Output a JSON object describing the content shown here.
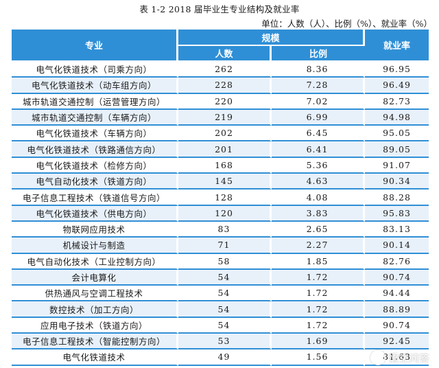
{
  "caption": "表 1-2   2018 届毕业生专业结构及就业率",
  "unit_note": "单位：人数（人）、比例（%）、就业率（%）",
  "headers": {
    "major": "专业",
    "scale": "规模",
    "count": "人数",
    "ratio": "比例",
    "rate": "就业率"
  },
  "rows": [
    {
      "major": "电气化铁道技术（司乘方向）",
      "count": "262",
      "ratio": "8.36",
      "rate": "96.95"
    },
    {
      "major": "电气化铁道技术（动车组方向）",
      "count": "228",
      "ratio": "7.28",
      "rate": "96.49"
    },
    {
      "major": "城市轨道交通控制（运营管理方向）",
      "count": "220",
      "ratio": "7.02",
      "rate": "82.73"
    },
    {
      "major": "城市轨道交通控制（车辆方向）",
      "count": "219",
      "ratio": "6.99",
      "rate": "94.98"
    },
    {
      "major": "电气化铁道技术（车辆方向）",
      "count": "202",
      "ratio": "6.45",
      "rate": "95.05"
    },
    {
      "major": "电气化铁道技术（铁路通信方向）",
      "count": "201",
      "ratio": "6.41",
      "rate": "89.05"
    },
    {
      "major": "电气化铁道技术（检修方向）",
      "count": "168",
      "ratio": "5.36",
      "rate": "91.07"
    },
    {
      "major": "电气自动化技术（铁道方向）",
      "count": "145",
      "ratio": "4.63",
      "rate": "90.34"
    },
    {
      "major": "电子信息工程技术（铁道信号方向）",
      "count": "128",
      "ratio": "4.08",
      "rate": "88.28"
    },
    {
      "major": "电气化铁道技术（供电方向）",
      "count": "120",
      "ratio": "3.83",
      "rate": "95.83"
    },
    {
      "major": "物联网应用技术",
      "count": "83",
      "ratio": "2.65",
      "rate": "83.13"
    },
    {
      "major": "机械设计与制造",
      "count": "71",
      "ratio": "2.27",
      "rate": "90.14"
    },
    {
      "major": "电气自动化技术（工业控制方向）",
      "count": "58",
      "ratio": "1.85",
      "rate": "82.76"
    },
    {
      "major": "会计电算化",
      "count": "54",
      "ratio": "1.72",
      "rate": "90.74"
    },
    {
      "major": "供热通风与空调工程技术",
      "count": "54",
      "ratio": "1.72",
      "rate": "94.44"
    },
    {
      "major": "数控技术（加工方向）",
      "count": "54",
      "ratio": "1.72",
      "rate": "88.89"
    },
    {
      "major": "应用电子技术（铁道方向）",
      "count": "54",
      "ratio": "1.72",
      "rate": "90.74"
    },
    {
      "major": "电子信息工程技术（智能控制方向）",
      "count": "53",
      "ratio": "1.69",
      "rate": "92.45"
    },
    {
      "major": "电气化铁道技术",
      "count": "49",
      "ratio": "1.56",
      "rate": "81.63"
    }
  ],
  "watermark": "悟空问答",
  "colors": {
    "header": "#2f8fd6",
    "shade": "#e8f1fa",
    "rule": "#2f8fd6"
  }
}
